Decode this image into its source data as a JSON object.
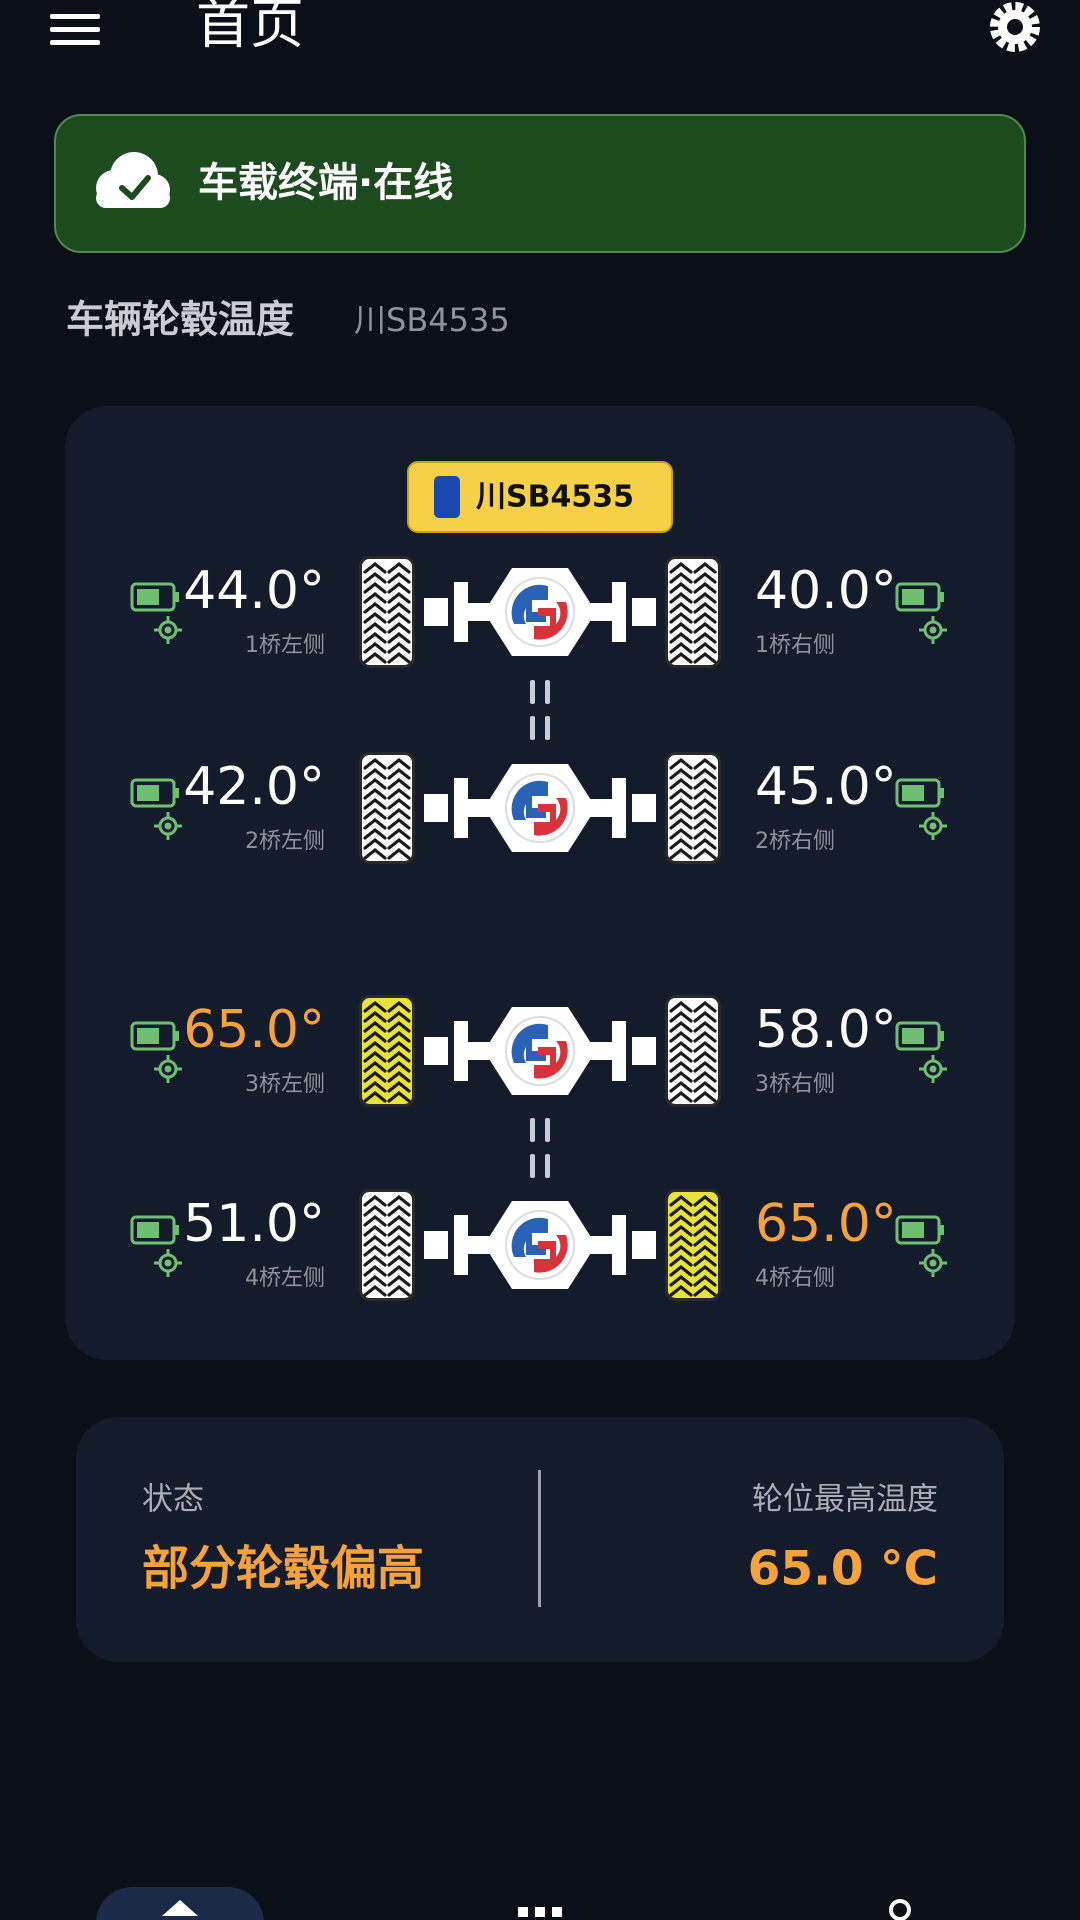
{
  "header": {
    "title": "首页"
  },
  "status_banner": {
    "text": "车载终端·在线"
  },
  "section": {
    "title": "车辆轮毂温度",
    "plate": "川SB4535"
  },
  "vehicle": {
    "plate": "川SB4535",
    "axles": [
      {
        "left": {
          "temp": "44.0°",
          "label": "1桥左侧"
        },
        "right": {
          "temp": "40.0°",
          "label": "1桥右侧"
        }
      },
      {
        "left": {
          "temp": "42.0°",
          "label": "2桥左侧"
        },
        "right": {
          "temp": "45.0°",
          "label": "2桥右侧"
        }
      },
      {
        "left": {
          "temp": "65.0°",
          "label": "3桥左侧"
        },
        "right": {
          "temp": "58.0°",
          "label": "3桥右侧"
        }
      },
      {
        "left": {
          "temp": "51.0°",
          "label": "4桥左侧"
        },
        "right": {
          "temp": "65.0°",
          "label": "4桥右侧"
        }
      }
    ]
  },
  "summary": {
    "status_label": "状态",
    "status": "部分轮毂偏高",
    "max_label": "轮位最高温度",
    "max": "65.0 °C"
  }
}
